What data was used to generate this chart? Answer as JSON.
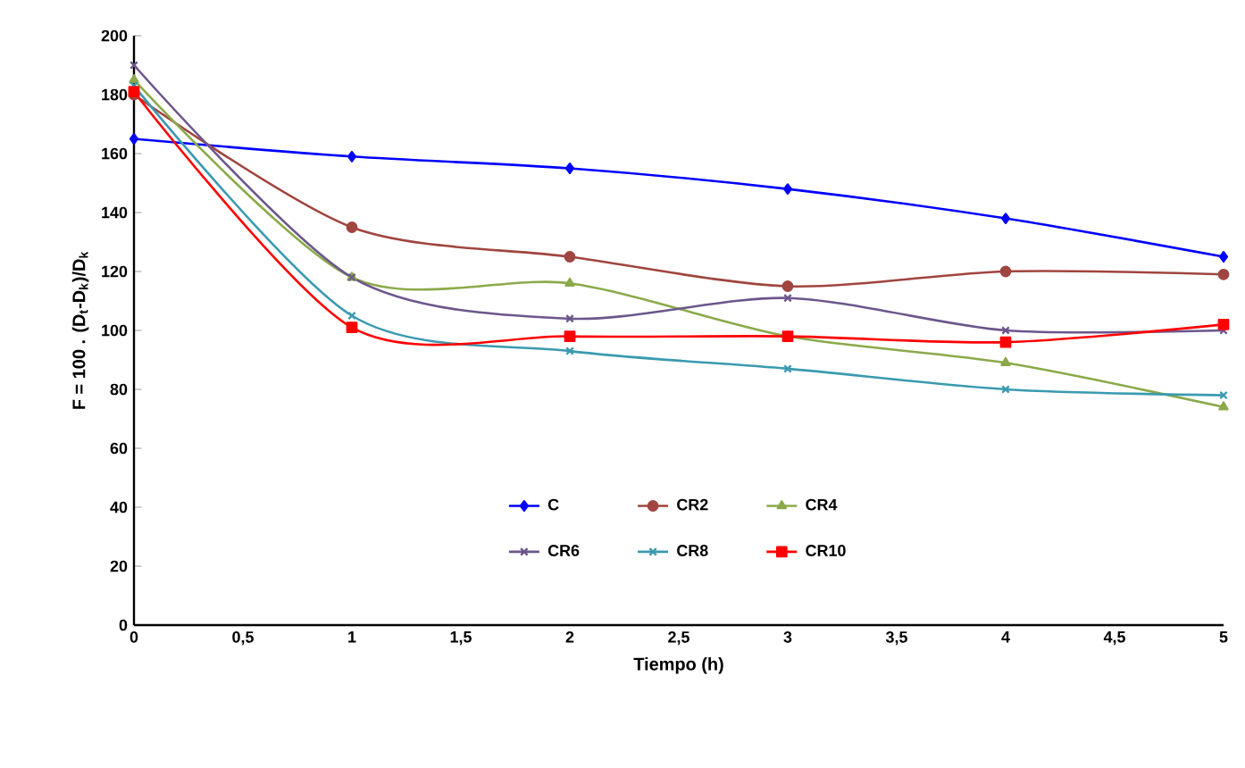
{
  "chart_data": {
    "type": "line",
    "xlabel": "Tiempo (h)",
    "ylabel": "F = 100 . (D$_{t}$-D$_{k}$)/D$_{k}$",
    "x": [
      0,
      1,
      2,
      3,
      4,
      5
    ],
    "series": [
      {
        "name": "C",
        "color": "#0000ff",
        "marker": "diamond",
        "values": [
          165,
          159,
          155,
          148,
          138,
          125
        ]
      },
      {
        "name": "CR2",
        "color": "#a0453f",
        "marker": "circle",
        "values": [
          180,
          135,
          125,
          115,
          120,
          119
        ]
      },
      {
        "name": "CR4",
        "color": "#8aaa4a",
        "marker": "triangle",
        "values": [
          185,
          118,
          116,
          98,
          89,
          74
        ]
      },
      {
        "name": "CR6",
        "color": "#6c568c",
        "marker": "cross",
        "values": [
          190,
          118,
          104,
          111,
          100,
          100
        ]
      },
      {
        "name": "CR8",
        "color": "#3a9ab0",
        "marker": "cross",
        "values": [
          183,
          105,
          93,
          87,
          80,
          78
        ]
      },
      {
        "name": "CR10",
        "color": "#ff0000",
        "marker": "square",
        "values": [
          181,
          101,
          98,
          98,
          96,
          102
        ]
      }
    ],
    "xlim": [
      0,
      5
    ],
    "ylim": [
      0,
      200
    ],
    "xticks": [
      0,
      {
        "value": 0.5,
        "label": "0,5"
      },
      1,
      {
        "value": 1.5,
        "label": "1,5"
      },
      2,
      {
        "value": 2.5,
        "label": "2,5"
      },
      3,
      {
        "value": 3.5,
        "label": "3,5"
      },
      4,
      {
        "value": 4.5,
        "label": "4,5"
      },
      5
    ],
    "yticks": [
      0,
      20,
      40,
      60,
      80,
      100,
      120,
      140,
      160,
      180,
      200
    ],
    "legend": "bottom",
    "grid": false,
    "line_style": "solid"
  }
}
